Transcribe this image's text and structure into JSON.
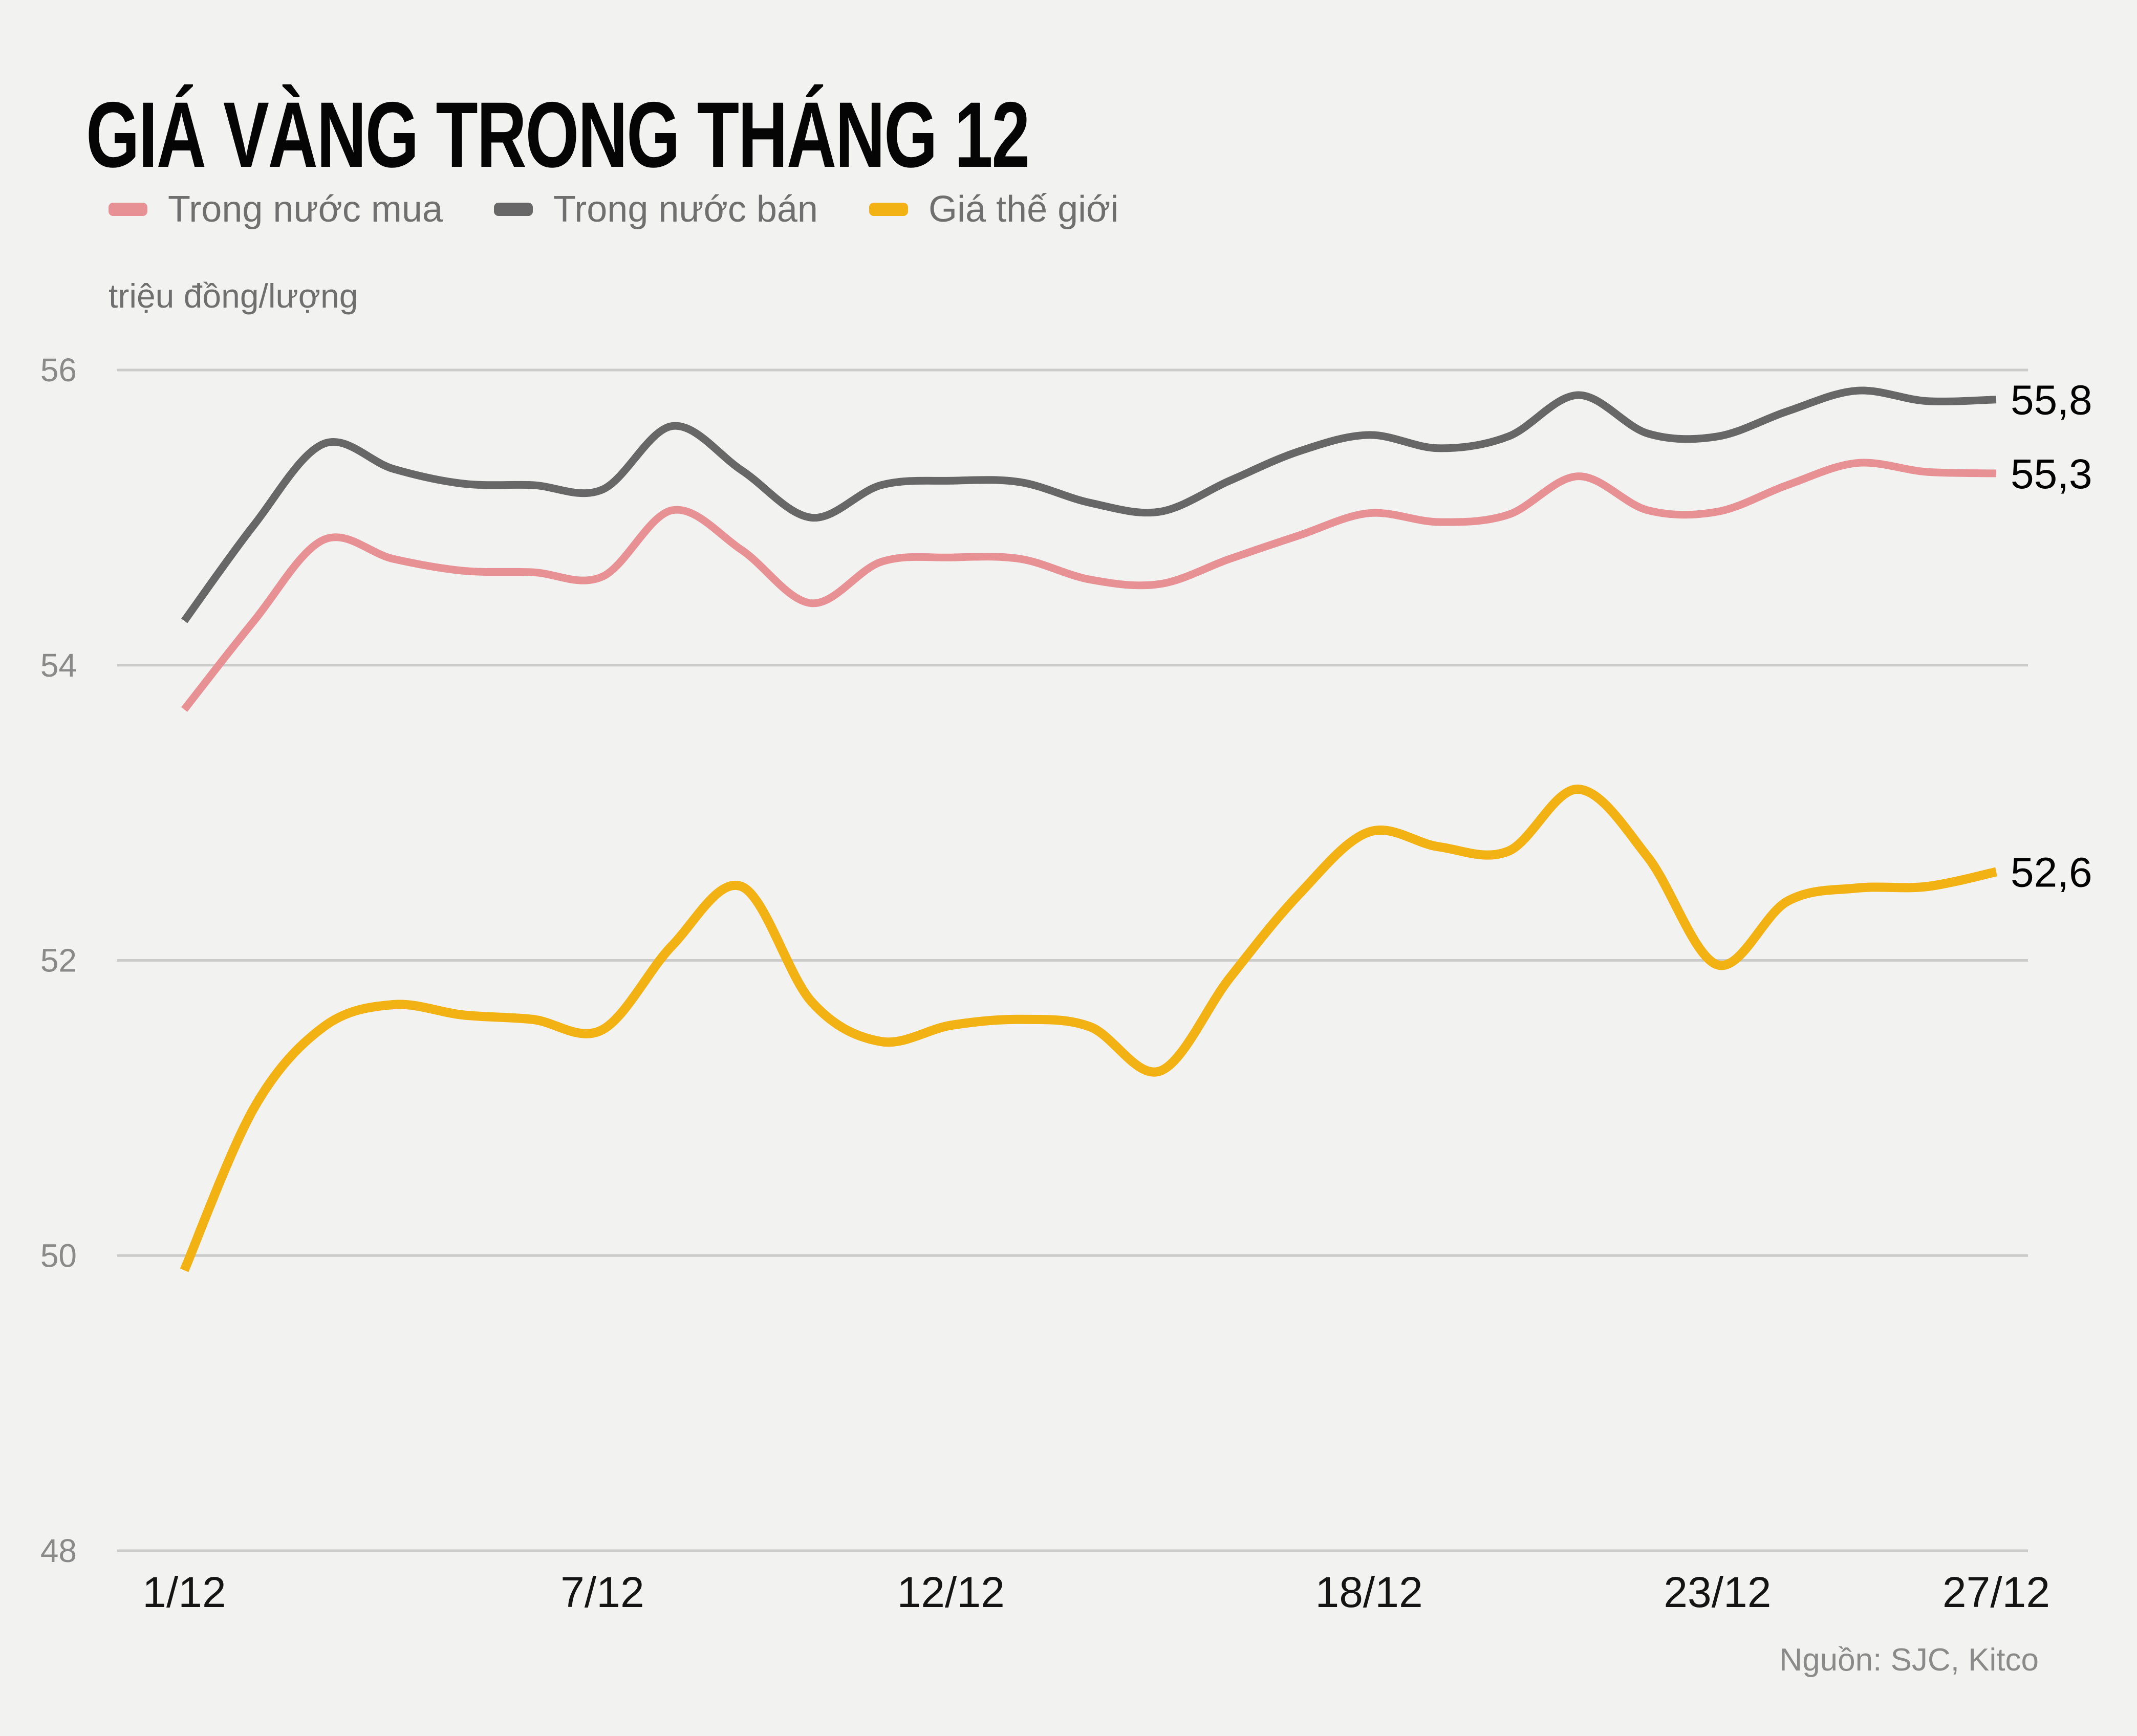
{
  "title": "GIÁ VÀNG TRONG THÁNG 12",
  "unit_label": "triệu đồng/lượng",
  "source": "Nguồn: SJC, Kitco",
  "legend": {
    "items": [
      {
        "label": "Trong nước mua",
        "color": "#E89195"
      },
      {
        "label": "Trong nước bán",
        "color": "#676767"
      },
      {
        "label": "Giá thế giới",
        "color": "#F3B214"
      }
    ]
  },
  "chart_data": {
    "type": "line",
    "title": "GIÁ VÀNG TRONG THÁNG 12",
    "ylabel": "triệu đồng/lượng",
    "grid": true,
    "legend_position": "top",
    "ylim": [
      48,
      56.4
    ],
    "y_ticks": [
      56,
      54,
      52,
      50,
      48
    ],
    "x_days": [
      1,
      2,
      3,
      4,
      5,
      6,
      7,
      8,
      9,
      10,
      11,
      12,
      13,
      14,
      15,
      16,
      17,
      18,
      19,
      20,
      21,
      22,
      23,
      24,
      25,
      26,
      27
    ],
    "x_ticks": [
      {
        "day": 1,
        "label": "1/12"
      },
      {
        "day": 7,
        "label": "7/12"
      },
      {
        "day": 12,
        "label": "12/12"
      },
      {
        "day": 18,
        "label": "18/12"
      },
      {
        "day": 23,
        "label": "23/12"
      },
      {
        "day": 27,
        "label": "27/12"
      }
    ],
    "series": [
      {
        "name": "Trong nước mua",
        "color": "#E89195",
        "stroke_width": 15,
        "end_label": "55,3",
        "values": [
          53.7,
          54.3,
          54.85,
          54.72,
          54.64,
          54.63,
          54.6,
          55.05,
          54.78,
          54.42,
          54.7,
          54.73,
          54.72,
          54.58,
          54.55,
          54.72,
          54.88,
          55.03,
          54.97,
          55.02,
          55.28,
          55.05,
          55.04,
          55.22,
          55.37,
          55.31,
          55.3
        ]
      },
      {
        "name": "Trong nước bán",
        "color": "#676767",
        "stroke_width": 15,
        "end_label": "55,8",
        "values": [
          54.3,
          54.95,
          55.5,
          55.33,
          55.23,
          55.22,
          55.19,
          55.62,
          55.32,
          55.0,
          55.22,
          55.25,
          55.24,
          55.1,
          55.04,
          55.25,
          55.45,
          55.56,
          55.47,
          55.55,
          55.83,
          55.57,
          55.55,
          55.72,
          55.86,
          55.79,
          55.8
        ]
      },
      {
        "name": "Giá thế giới",
        "color": "#F3B214",
        "stroke_width": 18,
        "end_label": "52,6",
        "values": [
          49.9,
          51.0,
          51.55,
          51.7,
          51.63,
          51.6,
          51.53,
          52.1,
          52.5,
          51.72,
          51.45,
          51.56,
          51.6,
          51.55,
          51.25,
          51.88,
          52.45,
          52.87,
          52.77,
          52.74,
          53.16,
          52.7,
          51.97,
          52.4,
          52.49,
          52.5,
          52.6
        ]
      }
    ]
  }
}
